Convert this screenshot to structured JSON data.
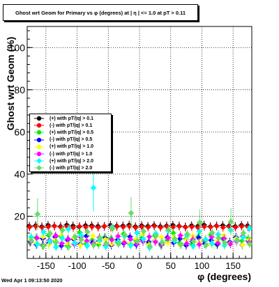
{
  "chart_data": {
    "type": "scatter",
    "title": "Ghost wrt Geom for Primary vs φ (degrees) at | η | <= 1.0 at pT > 0.11",
    "xlabel": "φ (degrees)",
    "ylabel": "Ghost wrt Geom (%)",
    "xlim": [
      -180,
      180
    ],
    "ylim": [
      0,
      110
    ],
    "xticks": [
      -150,
      -100,
      -50,
      0,
      50,
      100,
      150
    ],
    "yticks": [
      20,
      40,
      60,
      80,
      100
    ],
    "grid": true,
    "legend_position": "left-middle",
    "series": [
      {
        "name": "(+) with pT/|q| > 0.1",
        "color": "#000000",
        "marker": "circle",
        "values": [
          15.3,
          15.6,
          15.1,
          15.8,
          15.4,
          15.2,
          15.9,
          15.5,
          15.0,
          15.7,
          15.6,
          15.3,
          15.2,
          15.8,
          15.4,
          15.5,
          15.9,
          15.1,
          15.6,
          15.3,
          15.7,
          15.2,
          15.5,
          15.8,
          15.4,
          15.0,
          15.6,
          15.3,
          15.9,
          15.1,
          15.5,
          15.7,
          15.4,
          15.2,
          15.8,
          15.6
        ]
      },
      {
        "name": "(-) with pT/|q| > 0.1",
        "color": "#ff0000",
        "marker": "circle",
        "values": [
          14.9,
          15.2,
          14.7,
          15.0,
          15.3,
          14.8,
          15.1,
          14.6,
          15.2,
          14.9,
          15.0,
          14.7,
          15.3,
          14.8,
          15.1,
          14.9,
          15.2,
          14.6,
          15.0,
          14.8,
          15.3,
          14.7,
          15.1,
          14.9,
          15.2,
          14.8,
          15.0,
          14.6,
          15.1,
          14.9,
          15.3,
          14.7,
          15.0,
          14.8,
          15.2,
          14.9
        ]
      },
      {
        "name": "(+) with pT/|q| > 0.5",
        "color": "#00ee00",
        "marker": "circle",
        "values": [
          7.5,
          9.8,
          6.2,
          11.0,
          8.1,
          10.5,
          5.9,
          9.2,
          12.3,
          7.0,
          8.8,
          6.5,
          10.1,
          9.5,
          7.8,
          11.6,
          6.9,
          8.4,
          9.9,
          7.2,
          10.8,
          6.1,
          8.6,
          12.0,
          7.4,
          9.3,
          6.7,
          10.4,
          8.0,
          11.2,
          6.4,
          9.0,
          7.7,
          10.0,
          8.3,
          9.6
        ]
      },
      {
        "name": "(-) with pT/|q| > 0.5",
        "color": "#0000ff",
        "marker": "circle",
        "values": [
          8.0,
          6.6,
          9.4,
          7.3,
          10.2,
          6.0,
          8.7,
          9.1,
          6.8,
          10.6,
          7.6,
          8.2,
          9.7,
          6.3,
          8.9,
          7.1,
          10.3,
          6.5,
          9.0,
          7.9,
          8.5,
          6.9,
          10.0,
          7.4,
          9.3,
          6.2,
          8.1,
          9.8,
          7.0,
          8.6,
          6.7,
          9.5,
          7.8,
          10.1,
          6.4,
          8.3
        ]
      },
      {
        "name": "(+) with pT/|q| > 1.0",
        "color": "#ffff00",
        "marker": "circle",
        "values": [
          9.1,
          7.4,
          10.3,
          6.6,
          8.8,
          11.0,
          7.0,
          9.6,
          6.3,
          8.2,
          10.7,
          7.7,
          9.0,
          6.9,
          10.4,
          8.0,
          7.2,
          9.4,
          11.3,
          6.5,
          8.6,
          10.0,
          7.3,
          9.8,
          6.1,
          8.9,
          10.6,
          7.6,
          9.2,
          6.8,
          8.4,
          10.9,
          7.1,
          9.5,
          6.4,
          8.7
        ]
      },
      {
        "name": "(-) with pT/|q| > 1.0",
        "color": "#ff00ff",
        "marker": "circle",
        "values": [
          7.9,
          9.7,
          6.4,
          8.6,
          10.8,
          7.2,
          9.3,
          6.7,
          10.1,
          8.3,
          7.0,
          9.9,
          6.2,
          8.8,
          10.5,
          7.5,
          9.1,
          6.9,
          8.0,
          10.3,
          7.8,
          6.5,
          9.6,
          8.4,
          10.9,
          7.1,
          9.0,
          6.6,
          8.7,
          10.2,
          7.3,
          9.4,
          6.8,
          8.1,
          10.6,
          7.6
        ]
      },
      {
        "name": "(+) with pT/|q| > 2.0",
        "color": "#00ffff",
        "marker": "diamond",
        "values": [
          10.2,
          6.8,
          12.5,
          8.1,
          5.4,
          9.6,
          13.9,
          7.3,
          11.0,
          6.0,
          33.5,
          8.8,
          5.7,
          14.8,
          7.9,
          10.6,
          6.3,
          12.1,
          9.2,
          5.1,
          11.7,
          7.6,
          13.2,
          8.4,
          6.6,
          10.9,
          5.9,
          12.8,
          9.0,
          7.1,
          11.4,
          6.2,
          13.5,
          8.6,
          10.1,
          14.2
        ]
      },
      {
        "name": "(-) with pT/|q| > 2.0",
        "color": "#66dd66",
        "marker": "diamond",
        "values": [
          8.5,
          21.0,
          6.1,
          11.8,
          7.7,
          13.4,
          5.6,
          10.3,
          8.9,
          12.6,
          6.4,
          9.7,
          7.2,
          14.1,
          6.9,
          11.1,
          21.5,
          8.2,
          12.9,
          5.8,
          10.7,
          7.5,
          13.6,
          9.3,
          6.7,
          11.5,
          8.0,
          17.0,
          6.3,
          12.2,
          9.8,
          7.4,
          17.5,
          8.7,
          12.0,
          6.8
        ]
      }
    ],
    "x_phi_bins": [
      -175,
      -165,
      -155,
      -145,
      -135,
      -125,
      -115,
      -105,
      -95,
      -85,
      -75,
      -65,
      -55,
      -45,
      -35,
      -25,
      -15,
      -5,
      5,
      15,
      25,
      35,
      45,
      55,
      65,
      75,
      85,
      95,
      105,
      115,
      125,
      135,
      145,
      155,
      165,
      175
    ]
  },
  "footer": {
    "timestamp": "Wed Apr  1 09:13:50 2020"
  }
}
